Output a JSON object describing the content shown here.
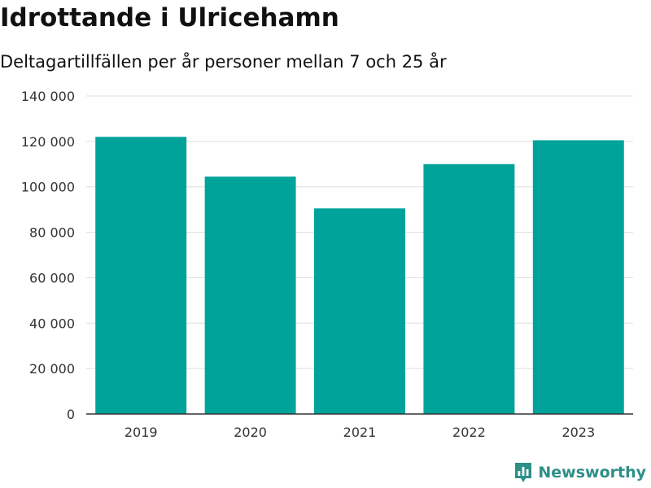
{
  "header": {
    "title": "Idrottande i Ulricehamn",
    "subtitle": "Deltagartillfällen per år personer mellan 7 och 25 år"
  },
  "brand": {
    "name": "Newsworthy",
    "icon": "newsworthy-logo-icon",
    "color": "#2e8f88"
  },
  "chart_data": {
    "type": "bar",
    "title": "Idrottande i Ulricehamn",
    "subtitle": "Deltagartillfällen per år personer mellan 7 och 25 år",
    "categories": [
      "2019",
      "2020",
      "2021",
      "2022",
      "2023"
    ],
    "values": [
      122000,
      104500,
      90500,
      110000,
      120500
    ],
    "xlabel": "",
    "ylabel": "",
    "ylim": [
      0,
      140000
    ],
    "y_ticks": [
      0,
      20000,
      40000,
      60000,
      80000,
      100000,
      120000,
      140000
    ],
    "y_tick_labels": [
      "0",
      "20 000",
      "40 000",
      "60 000",
      "80 000",
      "100 000",
      "120 000",
      "140 000"
    ],
    "grid": true,
    "legend": "none",
    "bar_color": "#00a39a",
    "grid_color": "#dddddd",
    "axis_color": "#333333"
  }
}
